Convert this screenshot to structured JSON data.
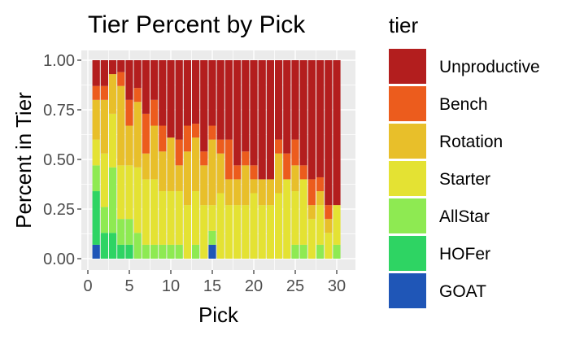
{
  "chart_data": {
    "type": "bar",
    "stacked": true,
    "title": "Tier Percent by Pick",
    "xlabel": "Pick",
    "ylabel": "Percent in Tier",
    "xlim": [
      0,
      31
    ],
    "ylim": [
      0,
      1
    ],
    "x_ticks": [
      0,
      5,
      10,
      15,
      20,
      25,
      30
    ],
    "y_ticks": [
      0,
      0.25,
      0.5,
      0.75,
      1
    ],
    "y_tick_labels": [
      "0.00",
      "0.25",
      "0.50",
      "0.75",
      "1.00"
    ],
    "grid": true,
    "panel_background": "#ebebeb",
    "legend": {
      "title": "tier",
      "placement": "right"
    },
    "categories": [
      1,
      2,
      3,
      4,
      5,
      6,
      7,
      8,
      9,
      10,
      11,
      12,
      13,
      14,
      15,
      16,
      17,
      18,
      19,
      20,
      21,
      22,
      23,
      24,
      25,
      26,
      27,
      28,
      29,
      30
    ],
    "series": [
      {
        "name": "GOAT",
        "color": "#1f56b7",
        "values": [
          0.07,
          0,
          0,
          0,
          0,
          0,
          0,
          0,
          0,
          0,
          0,
          0,
          0,
          0,
          0.07,
          0,
          0,
          0,
          0,
          0,
          0,
          0,
          0,
          0,
          0,
          0,
          0,
          0,
          0,
          0
        ]
      },
      {
        "name": "HOFer",
        "color": "#2ed463",
        "values": [
          0.27,
          0.13,
          0.13,
          0.07,
          0.07,
          0,
          0,
          0,
          0,
          0,
          0,
          0,
          0,
          0,
          0,
          0,
          0,
          0,
          0,
          0,
          0,
          0,
          0,
          0,
          0,
          0,
          0,
          0,
          0,
          0
        ]
      },
      {
        "name": "AllStar",
        "color": "#8eea52",
        "values": [
          0.13,
          0.13,
          0.33,
          0.13,
          0.13,
          0.13,
          0.07,
          0.07,
          0.07,
          0.07,
          0.07,
          0,
          0.07,
          0,
          0.07,
          0,
          0,
          0,
          0,
          0,
          0,
          0,
          0,
          0,
          0.07,
          0.07,
          0,
          0.07,
          0,
          0.07
        ]
      },
      {
        "name": "Starter",
        "color": "#e4e233",
        "values": [
          0.13,
          0.27,
          0.27,
          0.27,
          0.27,
          0.33,
          0.33,
          0.33,
          0.27,
          0.27,
          0.27,
          0.27,
          0.27,
          0.27,
          0.13,
          0.33,
          0.27,
          0.27,
          0.27,
          0.33,
          0.27,
          0.27,
          0.33,
          0.4,
          0.27,
          0.33,
          0.2,
          0.2,
          0.13,
          0.2
        ]
      },
      {
        "name": "Rotation",
        "color": "#e8bf2a",
        "values": [
          0.2,
          0.27,
          0.2,
          0.4,
          0.2,
          0.33,
          0.13,
          0.27,
          0.2,
          0.27,
          0.13,
          0.27,
          0.27,
          0.2,
          0.33,
          0.2,
          0.13,
          0.13,
          0.2,
          0.07,
          0.13,
          0.13,
          0.2,
          0,
          0.13,
          0,
          0.07,
          0.07,
          0.07,
          0
        ]
      },
      {
        "name": "Bench",
        "color": "#ec5c1d",
        "values": [
          0.07,
          0.07,
          0,
          0.07,
          0.13,
          0.07,
          0.2,
          0.13,
          0.13,
          0,
          0.13,
          0.13,
          0.07,
          0.07,
          0.07,
          0.07,
          0.2,
          0.07,
          0.07,
          0.07,
          0,
          0,
          0.07,
          0.13,
          0.13,
          0.07,
          0.13,
          0.07,
          0.07,
          0
        ]
      },
      {
        "name": "Unproductive",
        "color": "#b31e1e",
        "values": [
          0.13,
          0.13,
          0.07,
          0.06,
          0.2,
          0.14,
          0.27,
          0.2,
          0.33,
          0.39,
          0.4,
          0.33,
          0.32,
          0.46,
          0.33,
          0.4,
          0.4,
          0.53,
          0.46,
          0.53,
          0.6,
          0.6,
          0.4,
          0.47,
          0.4,
          0.53,
          0.6,
          0.59,
          0.73,
          0.73
        ]
      }
    ]
  }
}
